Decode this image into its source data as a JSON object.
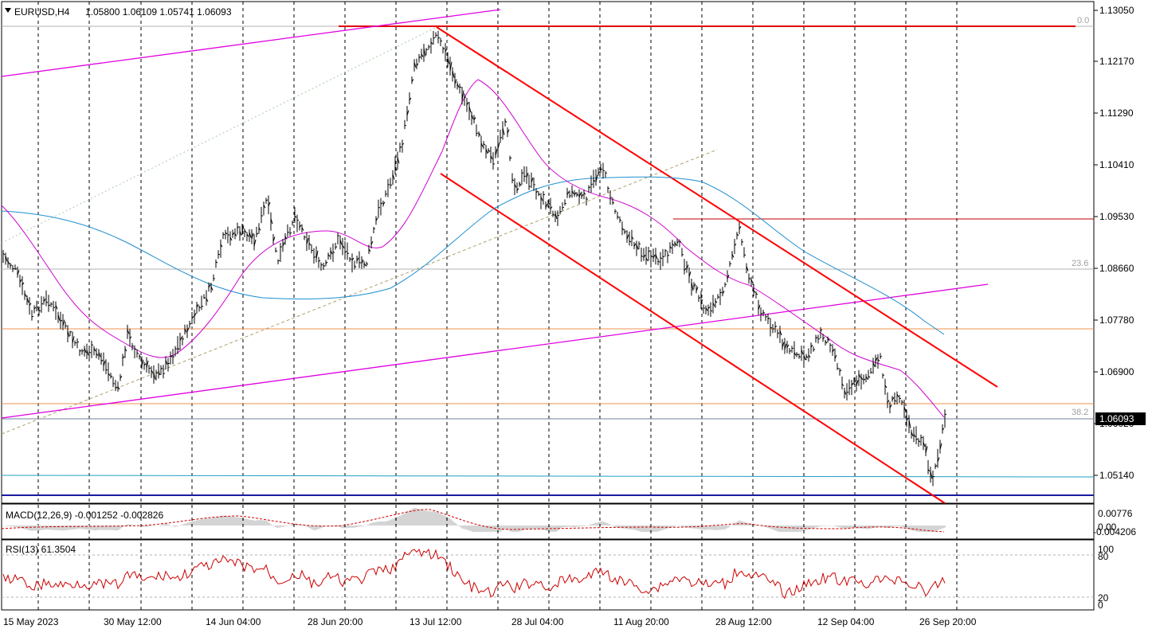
{
  "header": {
    "symbol": "EURUSD,H4",
    "ohlc": "1.05800 1.06109 1.05741 1.06093"
  },
  "price_axis": {
    "ticks": [
      "1.13050",
      "1.12170",
      "1.11290",
      "1.10410",
      "1.09530",
      "1.08660",
      "1.07780",
      "1.06900",
      "1.06020",
      "1.05140"
    ],
    "current_price": "1.06093"
  },
  "fibonacci": {
    "levels": [
      "0.0",
      "23.6",
      "38.2"
    ]
  },
  "time_axis": {
    "labels": [
      "15 May 2023",
      "30 May 12:00",
      "14 Jun 04:00",
      "28 Jun 20:00",
      "13 Jul 12:00",
      "28 Jul 04:00",
      "11 Aug 20:00",
      "28 Aug 12:00",
      "12 Sep 04:00",
      "26 Sep 20:00"
    ]
  },
  "macd": {
    "label": "MACD(12,26,9) -0.001252 -0.002826",
    "ticks": [
      "0.00776",
      "0.00",
      "-0.004206"
    ]
  },
  "rsi": {
    "label": "RSI(13) 61.3504",
    "ticks": [
      "100",
      "80",
      "20",
      "0"
    ]
  },
  "colors": {
    "channel": "#ff0000",
    "trendline": "#e000e0",
    "ma_fast": "#d000d0",
    "ma_slow": "#1e8fd0",
    "bars": "#000000",
    "rsi": "#cc0000",
    "macd_signal": "#cc0000",
    "macd_hist": "#a8a8a8"
  }
}
